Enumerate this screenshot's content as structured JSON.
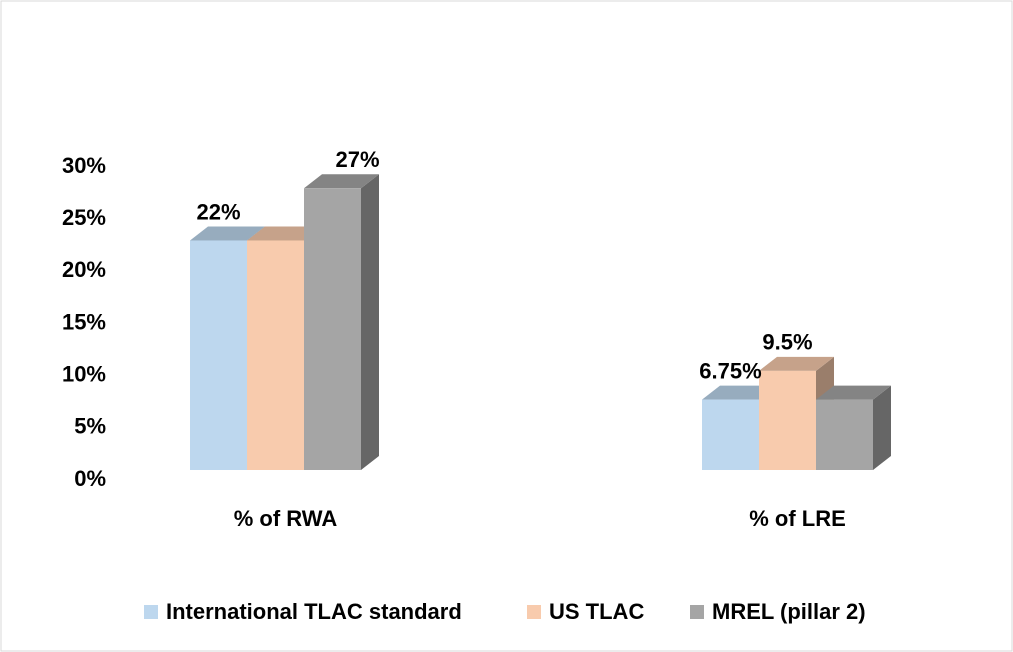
{
  "chart_data": {
    "type": "bar3d",
    "categories": [
      "% of RWA",
      "% of LRE"
    ],
    "series": [
      {
        "name": "International TLAC standard",
        "color": "#bdd7ee",
        "values": [
          22,
          6.75
        ],
        "value_labels": [
          "22%",
          "6.75%"
        ]
      },
      {
        "name": "US TLAC",
        "color": "#f8cbad",
        "values": [
          22,
          9.5
        ],
        "value_labels": [
          null,
          "9.5%"
        ]
      },
      {
        "name": "MREL (pillar 2)",
        "color": "#a5a5a5",
        "values": [
          27,
          6.75
        ],
        "value_labels": [
          "27%",
          null
        ]
      }
    ],
    "ylim": [
      0,
      30
    ],
    "yticks": [
      {
        "value": 0,
        "label": "0%"
      },
      {
        "value": 5,
        "label": "5%"
      },
      {
        "value": 10,
        "label": "10%"
      },
      {
        "value": 15,
        "label": "15%"
      },
      {
        "value": 20,
        "label": "20%"
      },
      {
        "value": 25,
        "label": "25%"
      },
      {
        "value": 30,
        "label": "30%"
      }
    ],
    "legend": "bottom"
  }
}
